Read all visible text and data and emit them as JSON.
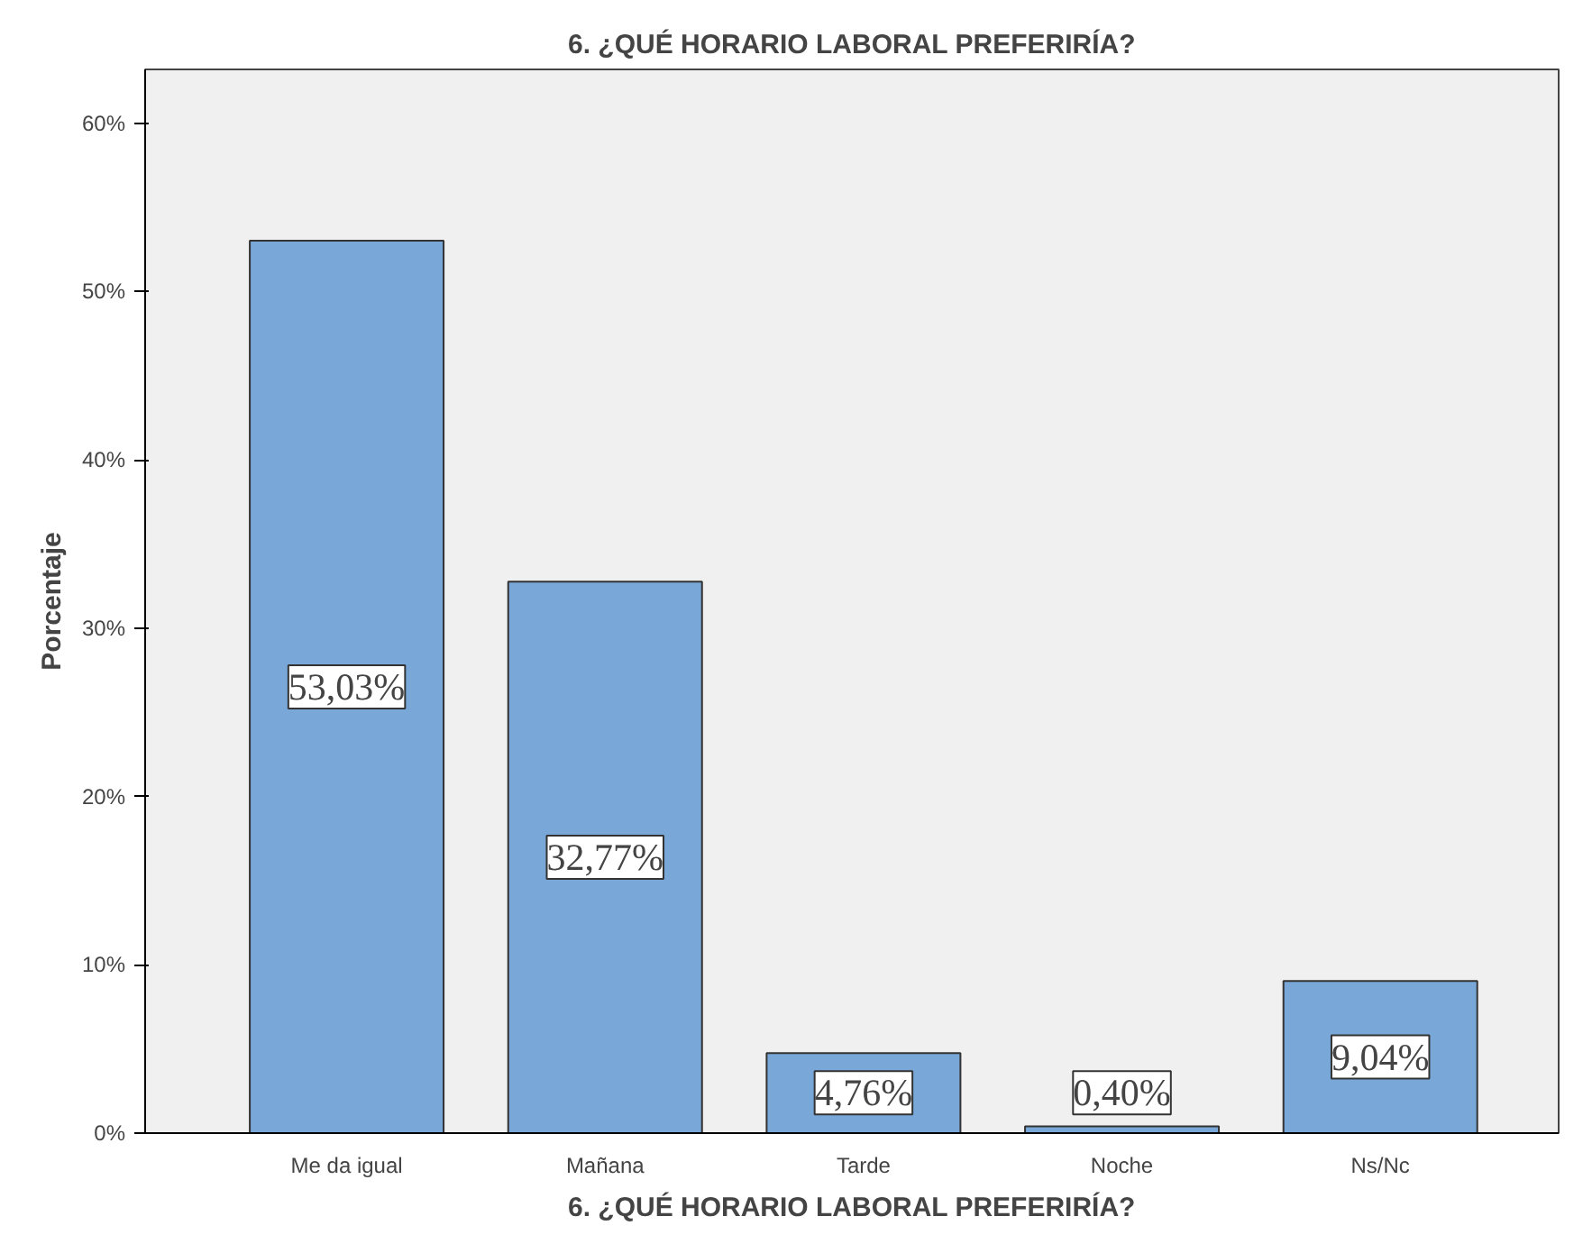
{
  "chart_data": {
    "type": "bar",
    "title": "6. ¿QUÉ HORARIO LABORAL PREFERIRÍA?",
    "xlabel": "6. ¿QUÉ HORARIO LABORAL PREFERIRÍA?",
    "ylabel": "Porcentaje",
    "categories": [
      "Me da igual",
      "Mañana",
      "Tarde",
      "Noche",
      "Ns/Nc"
    ],
    "values": [
      53.03,
      32.77,
      4.76,
      0.4,
      9.04
    ],
    "value_labels": [
      "53,03%",
      "32,77%",
      "4,76%",
      "0,40%",
      "9,04%"
    ],
    "color": "#79a8d8",
    "ylim": [
      0,
      63.2
    ],
    "yticks": [
      {
        "value": 0,
        "label": "0%"
      },
      {
        "value": 10,
        "label": "10%"
      },
      {
        "value": 20,
        "label": "20%"
      },
      {
        "value": 30,
        "label": "30%"
      },
      {
        "value": 40,
        "label": "40%"
      },
      {
        "value": 50,
        "label": "50%"
      },
      {
        "value": 60,
        "label": "60%"
      }
    ],
    "grid": false
  }
}
